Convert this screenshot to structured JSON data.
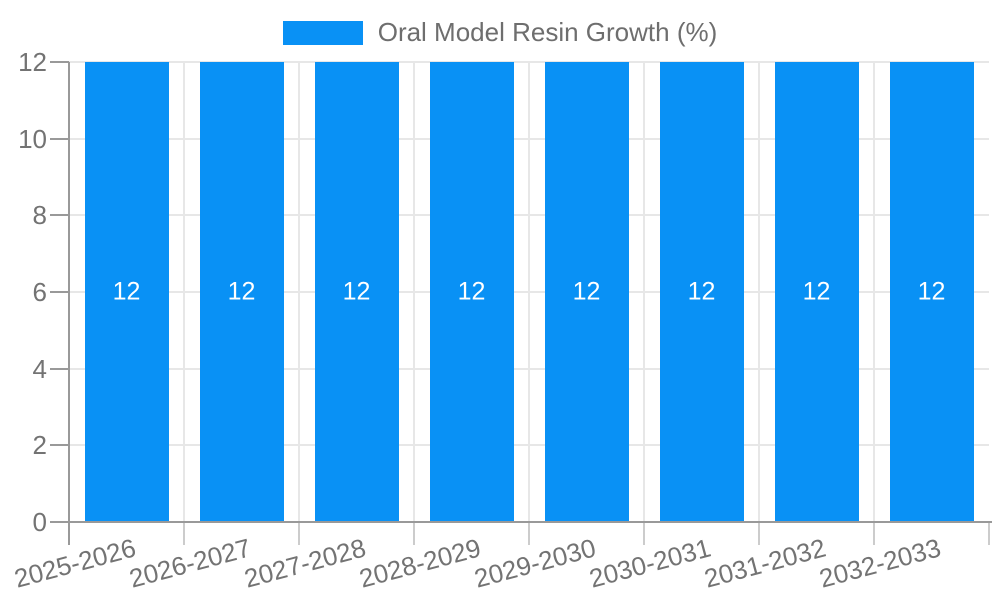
{
  "chart_data": {
    "type": "bar",
    "title": "Oral Model Resin Growth (%)",
    "categories": [
      "2025-2026",
      "2026-2027",
      "2027-2028",
      "2028-2029",
      "2029-2030",
      "2030-2031",
      "2031-2032",
      "2032-2033"
    ],
    "values": [
      12,
      12,
      12,
      12,
      12,
      12,
      12,
      12
    ],
    "bar_labels": [
      "12",
      "12",
      "12",
      "12",
      "12",
      "12",
      "12",
      "12"
    ],
    "xlabel": "",
    "ylabel": "",
    "ylim": [
      0,
      12
    ],
    "yticks": [
      0,
      2,
      4,
      6,
      8,
      10,
      12
    ],
    "grid": true,
    "legend_position": "top-center",
    "x_label_rotation_deg": -15,
    "colors": {
      "bar": "#0991f5",
      "axis": "#999999",
      "grid": "#e7e7e7",
      "category_tick": "#cccccc",
      "axis_label": "#737373",
      "legend_text": "#6e6e6e",
      "bar_label": "#ffffff",
      "background": "#ffffff"
    }
  }
}
